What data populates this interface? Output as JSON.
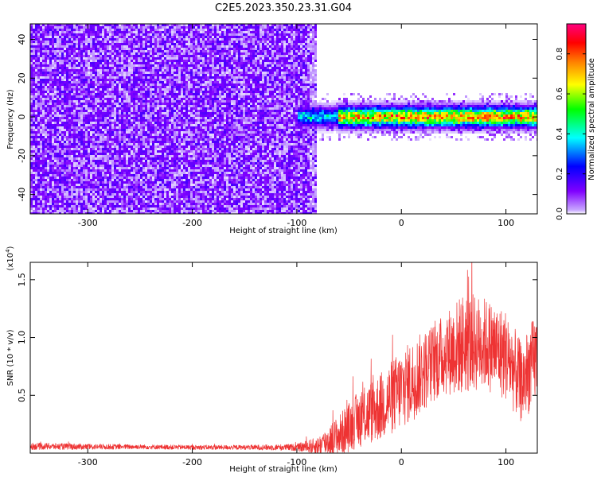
{
  "chart_data": [
    {
      "type": "heatmap",
      "title": "C2E5.2023.350.23.31.G04",
      "xlabel": "Height of straight line (km)",
      "ylabel": "Frequency (Hz)",
      "xlim": [
        -355,
        130
      ],
      "ylim": [
        -50,
        48
      ],
      "xticks": [
        -300,
        -200,
        -100,
        0,
        100
      ],
      "yticks": [
        -40,
        -20,
        0,
        20,
        40
      ],
      "noise_region_x": [
        -355,
        -80
      ],
      "signal_band_x": [
        -100,
        130
      ],
      "signal_band_halfwidth_hz": 5,
      "signal_peak_x": [
        -60,
        130
      ],
      "grid": false,
      "colorbar": {
        "label": "Normalized spectral amplitude",
        "range": [
          0,
          0.95
        ],
        "ticks": [
          0.0,
          0.2,
          0.4,
          0.6,
          0.8
        ],
        "colors": [
          "#ffffff",
          "#8000ff",
          "#0000ff",
          "#00ffff",
          "#00ff00",
          "#ffff00",
          "#ff8000",
          "#ff0000",
          "#ff0080"
        ]
      }
    },
    {
      "type": "line",
      "xlabel": "Height of straight line (km)",
      "ylabel": "SNR (10 * v/v)",
      "yscale_label": "(x10",
      "yscale_exp": "4",
      "xlim": [
        -355,
        130
      ],
      "ylim": [
        0,
        1.65
      ],
      "xticks": [
        -300,
        -200,
        -100,
        0,
        100
      ],
      "yticks": [
        0.5,
        1.0,
        1.5
      ],
      "ytick_labels": [
        "0.5",
        "1.0",
        "1.5"
      ],
      "line_color": "#ee3333",
      "series": [
        {
          "x": [
            -355,
            -300,
            -250,
            -200,
            -150,
            -100,
            -80,
            -60,
            -40,
            -20,
            0,
            20,
            40,
            60,
            80,
            100,
            115,
            130
          ],
          "y": [
            0.06,
            0.055,
            0.055,
            0.05,
            0.05,
            0.05,
            0.06,
            0.15,
            0.3,
            0.4,
            0.55,
            0.7,
            0.85,
            0.95,
            0.95,
            0.85,
            0.6,
            0.85
          ],
          "noise": [
            0.03,
            0.025,
            0.02,
            0.02,
            0.02,
            0.03,
            0.08,
            0.18,
            0.25,
            0.3,
            0.35,
            0.35,
            0.35,
            0.45,
            0.4,
            0.4,
            0.35,
            0.4
          ]
        }
      ],
      "grid": false
    }
  ]
}
